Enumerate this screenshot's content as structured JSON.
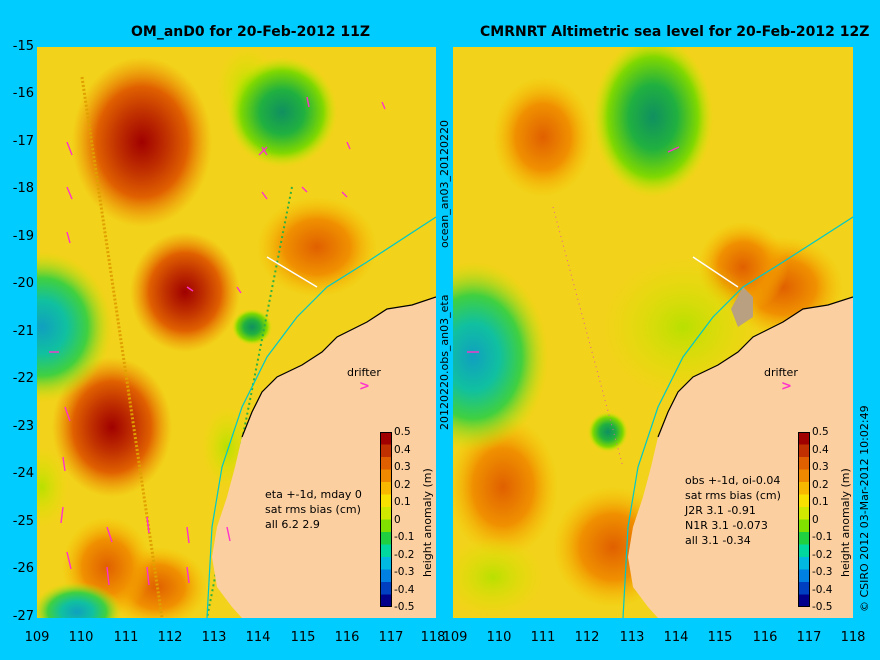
{
  "left_panel": {
    "title": "OM_anD0 for 20-Feb-2012 11Z",
    "y_ticks": [
      "-15",
      "-16",
      "-17",
      "-18",
      "-19",
      "-20",
      "-21",
      "-22",
      "-23",
      "-24",
      "-25",
      "-26",
      "-27"
    ],
    "x_ticks": [
      "109",
      "110",
      "111",
      "112",
      "113",
      "114",
      "115",
      "116",
      "117",
      "118"
    ],
    "drifter_label": "drifter",
    "notes": [
      "eta +-1d, mday 0",
      "sat rms bias (cm)",
      "all 6.2 2.9"
    ]
  },
  "right_panel": {
    "title": "CMRNRT Altimetric sea level  for 20-Feb-2012 12Z",
    "x_ticks": [
      "109",
      "110",
      "111",
      "112",
      "113",
      "114",
      "115",
      "116",
      "117",
      "118"
    ],
    "drifter_label": "drifter",
    "notes": [
      "obs +-1d, oi-0.04",
      "sat rms bias (cm)",
      "J2R   3.1 -0.91",
      "N1R   3.1 -0.073",
      "all 3.1 -0.34"
    ]
  },
  "side_labels": {
    "left_top": "ocean_an03_20120220",
    "left_bottom": "20120220.obs_an03_eta",
    "right": "© CSIRO 2012   03-Mar-2012 10:02:49"
  },
  "colorbar": {
    "ticks": [
      "0.5",
      "0.4",
      "0.3",
      "0.2",
      "0.1",
      "0",
      "-0.1",
      "-0.2",
      "-0.3",
      "-0.4",
      "-0.5"
    ],
    "label": "height anomaly (m)",
    "colors": [
      "#00008B",
      "#0040C0",
      "#0080E0",
      "#00B8E0",
      "#00D8A0",
      "#20D040",
      "#80E000",
      "#D0E800",
      "#F8E000",
      "#F8B800",
      "#F08800",
      "#E06000",
      "#C03000",
      "#A00000"
    ]
  },
  "colors": {
    "background": "#00CCFF",
    "land": "#FCCFA0",
    "ocean_base": "#F2D21A",
    "vector": "#FF33CC"
  }
}
